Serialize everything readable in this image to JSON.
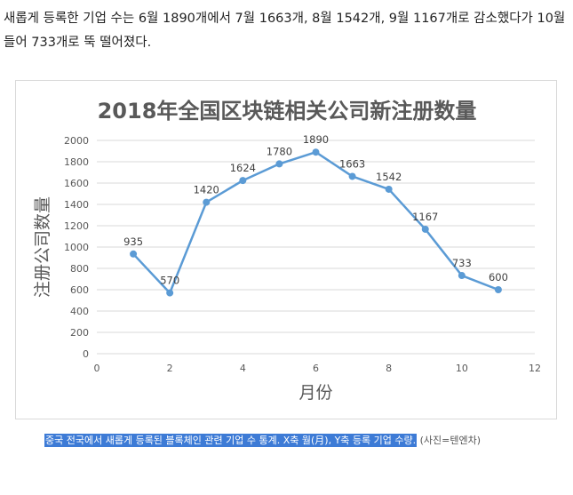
{
  "article": {
    "paragraph": "새롭게 등록한 기업 수는 6월 1890개에서 7월 1663개, 8월 1542개, 9월 1167개로 감소했다가 10월 들어 733개로 뚝 떨어졌다."
  },
  "caption": {
    "highlight": "중국 전국에서 새롭게 등록된 블록체인 관련 기업 수 통계. X축 월(月), Y축 등록 기업 수량.",
    "credit": "(사진=텐엔차)"
  },
  "chart_data": {
    "type": "line",
    "title": "2018年全国区块链相关公司新注册数量",
    "xlabel": "月份",
    "ylabel": "注册公司数量",
    "x": [
      1,
      2,
      3,
      4,
      5,
      6,
      7,
      8,
      9,
      10,
      11
    ],
    "series": [
      {
        "values": [
          935,
          570,
          1420,
          1624,
          1780,
          1890,
          1663,
          1542,
          1167,
          733,
          600
        ]
      }
    ],
    "xlim": [
      0,
      12
    ],
    "ylim": [
      0,
      2000
    ],
    "xticks": [
      0,
      2,
      4,
      6,
      8,
      10,
      12
    ],
    "yticks": [
      0,
      200,
      400,
      600,
      800,
      1000,
      1200,
      1400,
      1600,
      1800,
      2000
    ],
    "grid": "horizontal",
    "data_labels": true,
    "colors": {
      "line": "#5b9bd5",
      "grid": "#d9d9d9",
      "text": "#595959"
    }
  }
}
